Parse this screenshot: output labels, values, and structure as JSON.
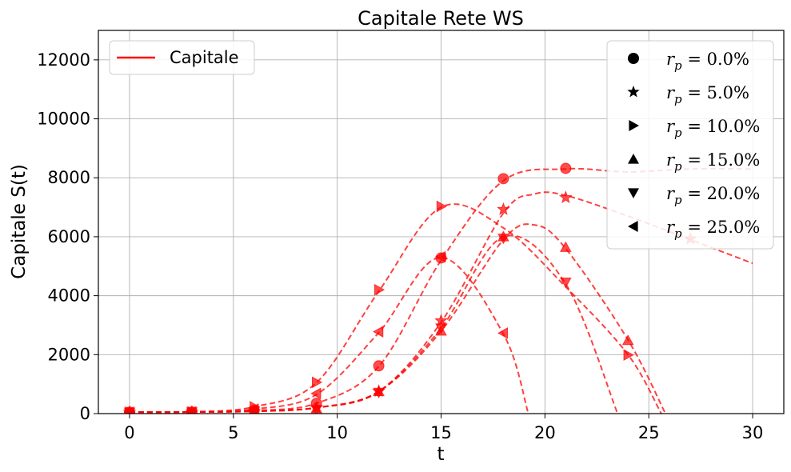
{
  "chart_data": {
    "type": "line",
    "title": "Capitale Rete WS",
    "xlabel": "t",
    "ylabel": "Capitale S(t)",
    "xlim": [
      -1.5,
      31.5
    ],
    "ylim": [
      0,
      13000
    ],
    "xticks": [
      0,
      5,
      10,
      15,
      20,
      25,
      30
    ],
    "yticks": [
      0,
      2000,
      4000,
      6000,
      8000,
      10000,
      12000
    ],
    "grid": true,
    "line_color": "#ff0000",
    "line_style": "dashed",
    "legend_left": {
      "placement": "top-left",
      "entries": [
        {
          "label": "Capitale",
          "style": "solid-line"
        }
      ]
    },
    "legend_right": {
      "placement": "top-right",
      "entries": [
        {
          "marker": "circle",
          "var": "r",
          "sub": "p",
          "value": " = 0.0%"
        },
        {
          "marker": "star",
          "var": "r",
          "sub": "p",
          "value": " = 5.0%"
        },
        {
          "marker": "triangle-right",
          "var": "r",
          "sub": "p",
          "value": " = 10.0%"
        },
        {
          "marker": "triangle-up",
          "var": "r",
          "sub": "p",
          "value": " = 15.0%"
        },
        {
          "marker": "triangle-down",
          "var": "r",
          "sub": "p",
          "value": " = 20.0%"
        },
        {
          "marker": "triangle-left",
          "var": "r",
          "sub": "p",
          "value": " = 25.0%"
        }
      ]
    },
    "series": [
      {
        "marker": "circle",
        "curve": [
          [
            0,
            50
          ],
          [
            3,
            55
          ],
          [
            6,
            100
          ],
          [
            9,
            350
          ],
          [
            12,
            1600
          ],
          [
            15,
            5200
          ],
          [
            18,
            7900
          ],
          [
            21,
            8300
          ],
          [
            24,
            8200
          ],
          [
            27,
            8300
          ],
          [
            30,
            8300
          ]
        ],
        "points": [
          [
            0,
            50
          ],
          [
            3,
            55
          ],
          [
            6,
            110
          ],
          [
            9,
            350
          ],
          [
            12,
            1620
          ],
          [
            15,
            5280
          ],
          [
            18,
            7970
          ],
          [
            21,
            8320
          ]
        ]
      },
      {
        "marker": "star",
        "curve": [
          [
            0,
            50
          ],
          [
            3,
            55
          ],
          [
            6,
            80
          ],
          [
            9,
            200
          ],
          [
            12,
            750
          ],
          [
            15,
            3100
          ],
          [
            18,
            6800
          ],
          [
            19.5,
            7450
          ],
          [
            21,
            7400
          ],
          [
            24,
            6700
          ],
          [
            27,
            5900
          ],
          [
            30,
            5100
          ]
        ],
        "points": [
          [
            0,
            50
          ],
          [
            3,
            55
          ],
          [
            6,
            70
          ],
          [
            9,
            200
          ],
          [
            12,
            760
          ],
          [
            15,
            3150
          ],
          [
            18,
            6930
          ],
          [
            21,
            7330
          ],
          [
            27,
            5930
          ]
        ]
      },
      {
        "marker": "triangle-right",
        "curve": [
          [
            0,
            50
          ],
          [
            3,
            60
          ],
          [
            6,
            230
          ],
          [
            9,
            1050
          ],
          [
            12,
            4150
          ],
          [
            15,
            7000
          ],
          [
            18,
            6300
          ],
          [
            21,
            4300
          ],
          [
            24,
            2000
          ],
          [
            25.6,
            0
          ]
        ],
        "points": [
          [
            0,
            50
          ],
          [
            3,
            60
          ],
          [
            6,
            230
          ],
          [
            9,
            1060
          ],
          [
            12,
            4200
          ],
          [
            15,
            7030
          ],
          [
            24,
            1990
          ]
        ]
      },
      {
        "marker": "triangle-up",
        "curve": [
          [
            0,
            50
          ],
          [
            3,
            55
          ],
          [
            6,
            80
          ],
          [
            9,
            200
          ],
          [
            12,
            750
          ],
          [
            15,
            2800
          ],
          [
            18,
            5900
          ],
          [
            19.5,
            6400
          ],
          [
            21,
            5600
          ],
          [
            24,
            2500
          ],
          [
            25.8,
            0
          ]
        ],
        "points": [
          [
            0,
            50
          ],
          [
            3,
            55
          ],
          [
            6,
            75
          ],
          [
            9,
            170
          ],
          [
            12,
            750
          ],
          [
            15,
            2800
          ],
          [
            18,
            6000
          ],
          [
            21,
            5640
          ],
          [
            24,
            2480
          ]
        ]
      },
      {
        "marker": "triangle-down",
        "curve": [
          [
            0,
            50
          ],
          [
            3,
            55
          ],
          [
            6,
            80
          ],
          [
            9,
            200
          ],
          [
            12,
            750
          ],
          [
            15,
            2900
          ],
          [
            18,
            6000
          ],
          [
            21,
            4400
          ],
          [
            23.5,
            0
          ]
        ],
        "points": [
          [
            0,
            50
          ],
          [
            3,
            55
          ],
          [
            6,
            75
          ],
          [
            9,
            140
          ],
          [
            12,
            720
          ],
          [
            15,
            2900
          ],
          [
            18,
            5950
          ],
          [
            21,
            4460
          ]
        ]
      },
      {
        "marker": "triangle-left",
        "curve": [
          [
            0,
            50
          ],
          [
            3,
            60
          ],
          [
            6,
            150
          ],
          [
            9,
            650
          ],
          [
            12,
            2750
          ],
          [
            15,
            5300
          ],
          [
            18,
            2700
          ],
          [
            19.2,
            0
          ]
        ],
        "points": [
          [
            0,
            50
          ],
          [
            3,
            60
          ],
          [
            6,
            150
          ],
          [
            9,
            680
          ],
          [
            12,
            2780
          ],
          [
            15,
            5320
          ],
          [
            18,
            2730
          ]
        ]
      }
    ]
  }
}
